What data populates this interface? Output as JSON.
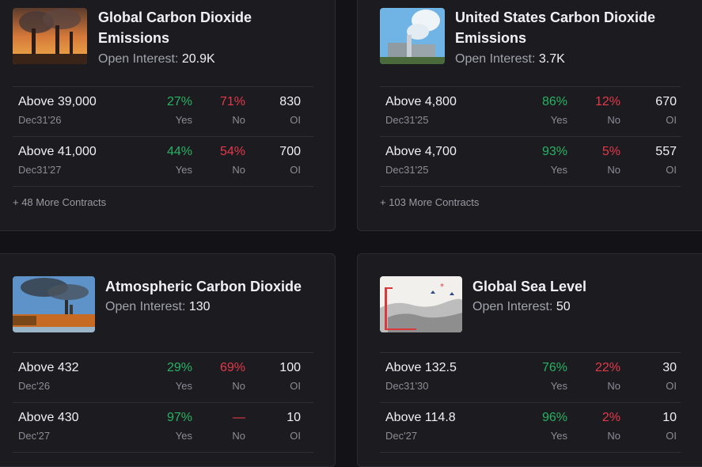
{
  "cards": [
    {
      "title_line1": "Global Carbon Dioxide",
      "title_line2": "Emissions",
      "oi_label": "Open Interest:",
      "oi_value": "20.9K",
      "contracts": [
        {
          "label": "Above 39,000",
          "date": "Dec31'26",
          "yes": "27%",
          "no": "71%",
          "oi": "830"
        },
        {
          "label": "Above 41,000",
          "date": "Dec31'27",
          "yes": "44%",
          "no": "54%",
          "oi": "700"
        }
      ],
      "more": "+ 48 More Contracts",
      "image_icon": "smokestacks-sunset-image"
    },
    {
      "title_line1": "United States Carbon Dioxide",
      "title_line2": "Emissions",
      "oi_label": "Open Interest:",
      "oi_value": "3.7K",
      "contracts": [
        {
          "label": "Above 4,800",
          "date": "Dec31'25",
          "yes": "86%",
          "no": "12%",
          "oi": "670"
        },
        {
          "label": "Above 4,700",
          "date": "Dec31'25",
          "yes": "93%",
          "no": "5%",
          "oi": "557"
        }
      ],
      "more": "+ 103 More Contracts",
      "image_icon": "factory-sky-image"
    },
    {
      "title_line1": "Atmospheric Carbon Dioxide",
      "title_line2": "",
      "oi_label": "Open Interest:",
      "oi_value": "130",
      "contracts": [
        {
          "label": "Above 432",
          "date": "Dec'26",
          "yes": "29%",
          "no": "69%",
          "oi": "100"
        },
        {
          "label": "Above 430",
          "date": "Dec'27",
          "yes": "97%",
          "no": "—",
          "oi": "10"
        }
      ],
      "more": "",
      "image_icon": "power-plant-forest-image"
    },
    {
      "title_line1": "Global Sea Level",
      "title_line2": "",
      "oi_label": "Open Interest:",
      "oi_value": "50",
      "contracts": [
        {
          "label": "Above 132.5",
          "date": "Dec31'30",
          "yes": "76%",
          "no": "22%",
          "oi": "30"
        },
        {
          "label": "Above 114.8",
          "date": "Dec'27",
          "yes": "96%",
          "no": "2%",
          "oi": "10"
        }
      ],
      "more": "",
      "image_icon": "sea-level-illustration-image"
    }
  ],
  "col_labels": {
    "yes": "Yes",
    "no": "No",
    "oi": "OI"
  },
  "colors": {
    "yes": "#27b264",
    "no": "#e5394a",
    "background": "#131317",
    "card": "#1b1b20"
  }
}
